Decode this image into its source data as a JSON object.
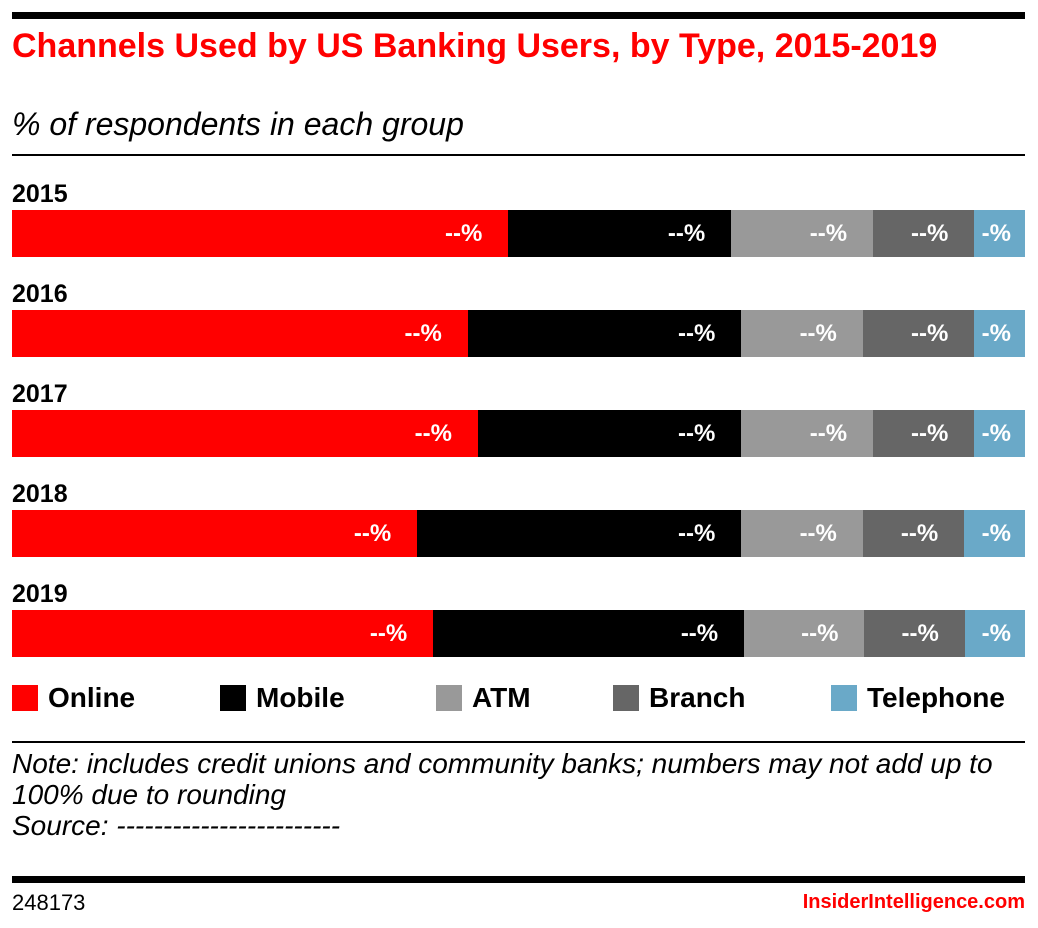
{
  "chart_data": {
    "type": "bar",
    "orientation": "horizontal",
    "stacked": true,
    "title": "Channels Used by US Banking Users, by Type, 2015-2019",
    "subtitle": "% of respondents in each group",
    "categories": [
      "2015",
      "2016",
      "2017",
      "2018",
      "2019"
    ],
    "series": [
      {
        "name": "Online",
        "color": "#ff0000",
        "values": [
          49,
          45,
          46,
          40,
          42
        ],
        "labels": [
          "--%",
          "--%",
          "--%",
          "--%",
          "--%"
        ]
      },
      {
        "name": "Mobile",
        "color": "#000000",
        "values": [
          22,
          27,
          26,
          32,
          31
        ],
        "labels": [
          "--%",
          "--%",
          "--%",
          "--%",
          "--%"
        ]
      },
      {
        "name": "ATM",
        "color": "#999999",
        "values": [
          14,
          12,
          13,
          12,
          12
        ],
        "labels": [
          "--%",
          "--%",
          "--%",
          "--%",
          "--%"
        ]
      },
      {
        "name": "Branch",
        "color": "#666666",
        "values": [
          10,
          11,
          10,
          10,
          10
        ],
        "labels": [
          "--%",
          "--%",
          "--%",
          "--%",
          "--%"
        ]
      },
      {
        "name": "Telephone",
        "color": "#6aa9c8",
        "values": [
          5,
          5,
          5,
          6,
          6
        ],
        "labels": [
          "-%",
          "-%",
          "-%",
          "-%",
          "-%"
        ]
      }
    ],
    "legend_position": "bottom",
    "grid": false
  },
  "note": "Note: includes credit unions and community banks; numbers may not add up to 100% due to rounding",
  "source": "Source: ------------------------",
  "chart_id": "248173",
  "brand": "InsiderIntelligence.com"
}
